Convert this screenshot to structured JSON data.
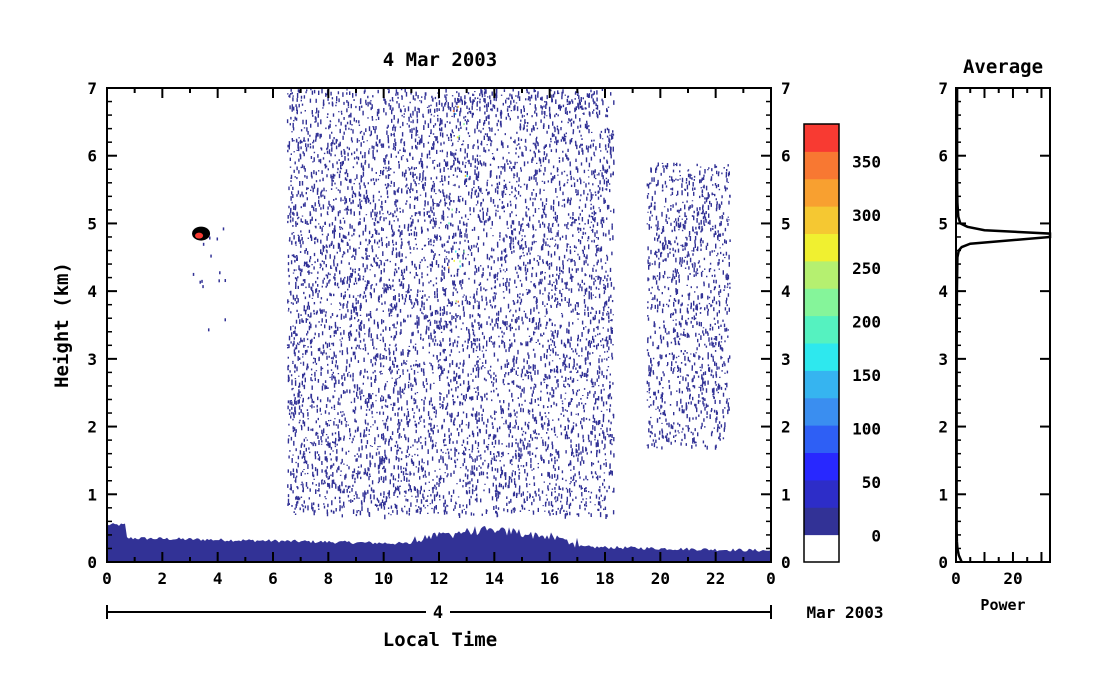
{
  "chart_data": [
    {
      "type": "heatmap",
      "title": "4 Mar 2003",
      "xlabel": "Local Time",
      "ylabel": "Height (km)",
      "xlim": [
        0,
        24
      ],
      "ylim": [
        0,
        7
      ],
      "x_ticks": [
        "0",
        "2",
        "4",
        "6",
        "8",
        "10",
        "12",
        "14",
        "16",
        "18",
        "20",
        "22",
        "0"
      ],
      "y_ticks": [
        "0",
        "1",
        "2",
        "3",
        "4",
        "5",
        "6",
        "7"
      ],
      "date_axis": {
        "day_label": "4",
        "month_year_label": "Mar 2003"
      },
      "colorbar": {
        "ticks": [
          "0",
          "50",
          "100",
          "150",
          "200",
          "250",
          "300",
          "350"
        ],
        "tick_values": [
          0,
          50,
          100,
          150,
          200,
          250,
          300,
          350
        ],
        "range": [
          -25,
          385
        ],
        "colors": [
          "#ffffff",
          "#323296",
          "#2d2dc8",
          "#2828ff",
          "#2e5ff5",
          "#3a8ef0",
          "#36b4f0",
          "#2ee8ee",
          "#55f2c0",
          "#85f59a",
          "#b5f070",
          "#f0f030",
          "#f5c832",
          "#f8a030",
          "#f87832",
          "#f83a32"
        ]
      },
      "regions": [
        {
          "name": "ground clutter",
          "x_range": [
            0,
            24
          ],
          "height_km": [
            0,
            0.5
          ],
          "level": 20
        },
        {
          "name": "blob",
          "x_center": 3.4,
          "height_km": 4.85,
          "level": 360
        },
        {
          "name": "scatter",
          "x_range": [
            6.5,
            18.3
          ],
          "height_km": [
            0.7,
            7
          ],
          "level": 20
        },
        {
          "name": "scatter",
          "x_range": [
            19.5,
            22.5
          ],
          "height_km": [
            1.7,
            5.9
          ],
          "level": 20
        }
      ]
    },
    {
      "type": "line",
      "title": "Average",
      "xlabel": "Power",
      "xlim": [
        0,
        33
      ],
      "ylim": [
        0,
        7
      ],
      "x_ticks": [
        "0",
        "20"
      ],
      "y_ticks": [
        "0",
        "1",
        "2",
        "3",
        "4",
        "5",
        "6",
        "7"
      ],
      "x": [
        2.0,
        1.0,
        0.5,
        0.3,
        0.2,
        0.2,
        0.2,
        0.2,
        0.3,
        0.5,
        1.0,
        2.0,
        5.0,
        33.0,
        33.0,
        10.0,
        4.0,
        1.5,
        0.8,
        0.5,
        0.4,
        0.4,
        0.4,
        0.4
      ],
      "y": [
        0.0,
        0.1,
        0.2,
        0.3,
        0.5,
        1.0,
        2.0,
        3.0,
        4.0,
        4.5,
        4.6,
        4.65,
        4.7,
        4.8,
        4.85,
        4.9,
        4.95,
        5.0,
        5.1,
        5.3,
        5.6,
        6.0,
        6.5,
        7.0
      ]
    }
  ]
}
